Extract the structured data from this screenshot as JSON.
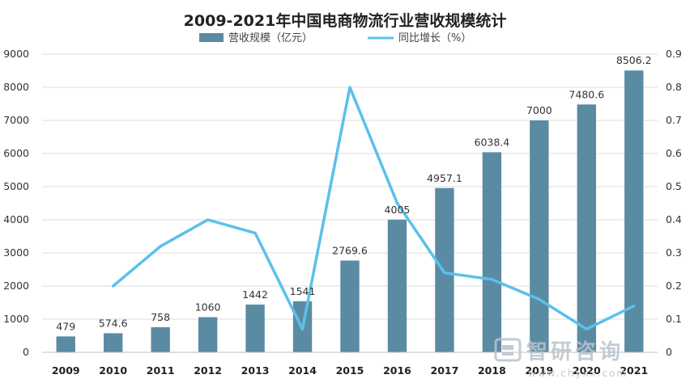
{
  "watermark": {
    "logo_text": "智研咨询",
    "url_text": "www.chyxx.com"
  },
  "chart_data": {
    "type": "bar",
    "title": "2009-2021年中国电商物流行业营收规模统计",
    "categories": [
      "2009",
      "2010",
      "2011",
      "2012",
      "2013",
      "2014",
      "2015",
      "2016",
      "2017",
      "2018",
      "2019",
      "2020",
      "2021"
    ],
    "series": [
      {
        "name": "营收规模（亿元）",
        "type": "bar",
        "axis": "left",
        "color": "#5b8ba3",
        "values": [
          479,
          574.6,
          758,
          1060,
          1442,
          1541,
          2769.6,
          4005,
          4957.1,
          6038.4,
          7000,
          7480.6,
          8506.2
        ],
        "labels": [
          "479",
          "574.6",
          "758",
          "1060",
          "1442",
          "1541",
          "2769.6",
          "4005",
          "4957.1",
          "6038.4",
          "7000",
          "7480.6",
          "8506.2"
        ]
      },
      {
        "name": "同比增长（%）",
        "type": "line",
        "axis": "right",
        "color": "#5bc0eb",
        "values": [
          null,
          0.2,
          0.32,
          0.4,
          0.36,
          0.07,
          0.8,
          0.45,
          0.24,
          0.22,
          0.16,
          0.07,
          0.14
        ]
      }
    ],
    "y_left": {
      "ylim": [
        0,
        9000
      ],
      "ticks": [
        "0",
        "1000",
        "2000",
        "3000",
        "4000",
        "5000",
        "6000",
        "7000",
        "8000",
        "9000"
      ]
    },
    "y_right": {
      "ylim": [
        0,
        0.9
      ],
      "ticks": [
        "0",
        "0.1",
        "0.2",
        "0.3",
        "0.4",
        "0.5",
        "0.6",
        "0.7",
        "0.8",
        "0.9"
      ]
    },
    "legend_position": "top-center",
    "grid": true
  }
}
